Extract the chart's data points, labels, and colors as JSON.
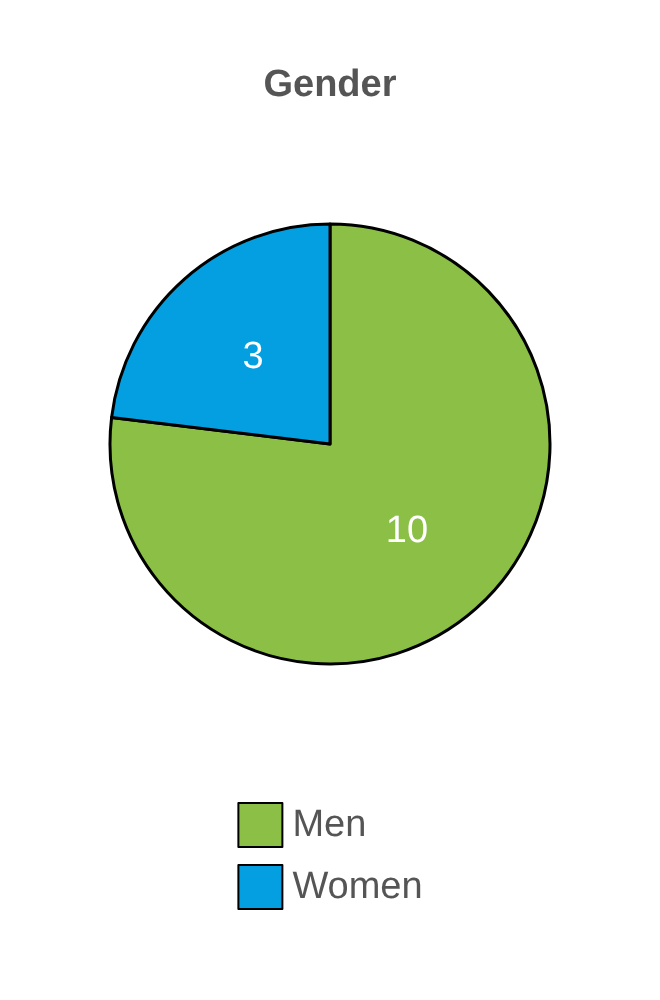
{
  "chart_data": {
    "type": "pie",
    "title": "Gender",
    "categories": [
      "Men",
      "Women"
    ],
    "values": [
      10,
      3
    ],
    "colors": [
      "#8bbf46",
      "#039fe0"
    ],
    "data_labels": true,
    "legend": "bottom"
  }
}
